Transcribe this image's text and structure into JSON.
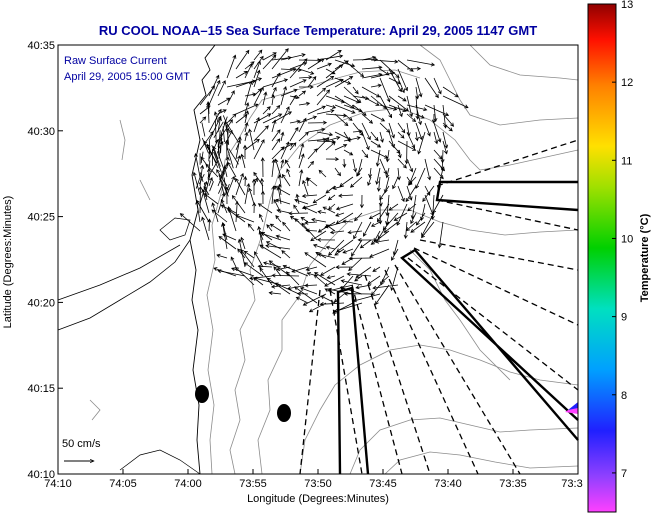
{
  "title": "RU COOL  NOAA–15  Sea Surface Temperature:  April 29, 2005 1147 GMT",
  "inset": {
    "line1": "Raw Surface Current",
    "line2": "April 29, 2005 15:00 GMT"
  },
  "scale_label": "50 cm/s",
  "chart_data": {
    "type": "map",
    "xlabel": "Longitude (Degrees:Minutes)",
    "ylabel": "Latitude (Degrees:Minutes)",
    "x_ticks": [
      "74:10",
      "74:05",
      "74:00",
      "73:55",
      "73:50",
      "73:45",
      "73:40",
      "73:35",
      "73:3"
    ],
    "y_ticks": [
      "40:35",
      "40:30",
      "40:25",
      "40:20",
      "40:15",
      "40:10"
    ],
    "colorbar": {
      "label": "Temperature (°C)",
      "ticks": [
        "13",
        "12",
        "11",
        "10",
        "9",
        "8",
        "7"
      ],
      "min": 6.5,
      "max": 13
    }
  }
}
